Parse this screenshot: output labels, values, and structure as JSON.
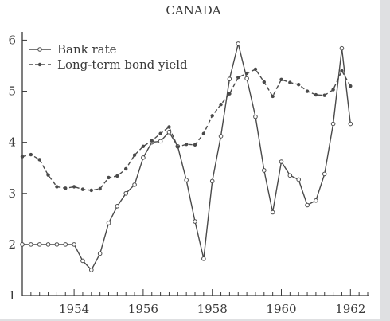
{
  "chart_data": {
    "type": "line",
    "title": "CANADA",
    "xlabel": "",
    "ylabel": "",
    "xlim": [
      1952.5,
      1962.5
    ],
    "ylim": [
      1,
      6.1
    ],
    "x_ticks": [
      {
        "value": 1954,
        "label": "1954"
      },
      {
        "value": 1956,
        "label": "1956"
      },
      {
        "value": 1958,
        "label": "1958"
      },
      {
        "value": 1960,
        "label": "1960"
      },
      {
        "value": 1962,
        "label": "1962"
      }
    ],
    "y_ticks": [
      {
        "value": 1,
        "label": "1"
      },
      {
        "value": 2,
        "label": "2"
      },
      {
        "value": 3,
        "label": "3"
      },
      {
        "value": 4,
        "label": "4"
      },
      {
        "value": 5,
        "label": "5"
      },
      {
        "value": 6,
        "label": "6"
      }
    ],
    "grid": false,
    "legend_position": "top-left",
    "series": [
      {
        "name": "Bank rate",
        "style": "solid",
        "marker": "open-circle",
        "color": "#4a4a4a",
        "points": [
          [
            1952.5,
            2.0
          ],
          [
            1952.75,
            2.0
          ],
          [
            1953.0,
            2.0
          ],
          [
            1953.25,
            2.0
          ],
          [
            1953.5,
            2.0
          ],
          [
            1953.75,
            2.0
          ],
          [
            1954.0,
            2.0
          ],
          [
            1954.25,
            1.68
          ],
          [
            1954.5,
            1.5
          ],
          [
            1954.75,
            1.82
          ],
          [
            1955.0,
            2.42
          ],
          [
            1955.25,
            2.75
          ],
          [
            1955.5,
            3.0
          ],
          [
            1955.75,
            3.17
          ],
          [
            1956.0,
            3.7
          ],
          [
            1956.25,
            4.0
          ],
          [
            1956.5,
            4.02
          ],
          [
            1956.75,
            4.2
          ],
          [
            1957.0,
            3.92
          ],
          [
            1957.25,
            3.26
          ],
          [
            1957.5,
            2.45
          ],
          [
            1957.75,
            1.72
          ],
          [
            1958.0,
            3.24
          ],
          [
            1958.25,
            4.12
          ],
          [
            1958.5,
            5.24
          ],
          [
            1958.75,
            5.93
          ],
          [
            1959.0,
            5.25
          ],
          [
            1959.25,
            4.5
          ],
          [
            1959.5,
            3.45
          ],
          [
            1959.75,
            2.63
          ],
          [
            1960.0,
            3.62
          ],
          [
            1960.25,
            3.35
          ],
          [
            1960.5,
            3.27
          ],
          [
            1960.75,
            2.77
          ],
          [
            1961.0,
            2.86
          ],
          [
            1961.25,
            3.38
          ],
          [
            1961.5,
            4.36
          ],
          [
            1961.75,
            5.84
          ],
          [
            1962.0,
            4.36
          ]
        ]
      },
      {
        "name": "Long-term bond yield",
        "style": "dashed",
        "marker": "filled-dot",
        "color": "#4a4a4a",
        "points": [
          [
            1952.5,
            3.72
          ],
          [
            1952.75,
            3.76
          ],
          [
            1953.0,
            3.66
          ],
          [
            1953.25,
            3.36
          ],
          [
            1953.5,
            3.13
          ],
          [
            1953.75,
            3.1
          ],
          [
            1954.0,
            3.13
          ],
          [
            1954.25,
            3.08
          ],
          [
            1954.5,
            3.06
          ],
          [
            1954.75,
            3.09
          ],
          [
            1955.0,
            3.31
          ],
          [
            1955.25,
            3.34
          ],
          [
            1955.5,
            3.48
          ],
          [
            1955.75,
            3.75
          ],
          [
            1956.0,
            3.92
          ],
          [
            1956.25,
            4.03
          ],
          [
            1956.5,
            4.17
          ],
          [
            1956.75,
            4.3
          ],
          [
            1957.0,
            3.91
          ],
          [
            1957.25,
            3.96
          ],
          [
            1957.5,
            3.95
          ],
          [
            1957.75,
            4.17
          ],
          [
            1958.0,
            4.52
          ],
          [
            1958.25,
            4.74
          ],
          [
            1958.5,
            4.95
          ],
          [
            1958.75,
            5.27
          ],
          [
            1959.0,
            5.35
          ],
          [
            1959.25,
            5.43
          ],
          [
            1959.5,
            5.18
          ],
          [
            1959.75,
            4.9
          ],
          [
            1960.0,
            5.23
          ],
          [
            1960.25,
            5.17
          ],
          [
            1960.5,
            5.13
          ],
          [
            1960.75,
            5.0
          ],
          [
            1961.0,
            4.93
          ],
          [
            1961.25,
            4.92
          ],
          [
            1961.5,
            5.03
          ],
          [
            1961.75,
            5.4
          ],
          [
            1962.0,
            5.1
          ]
        ]
      }
    ]
  }
}
